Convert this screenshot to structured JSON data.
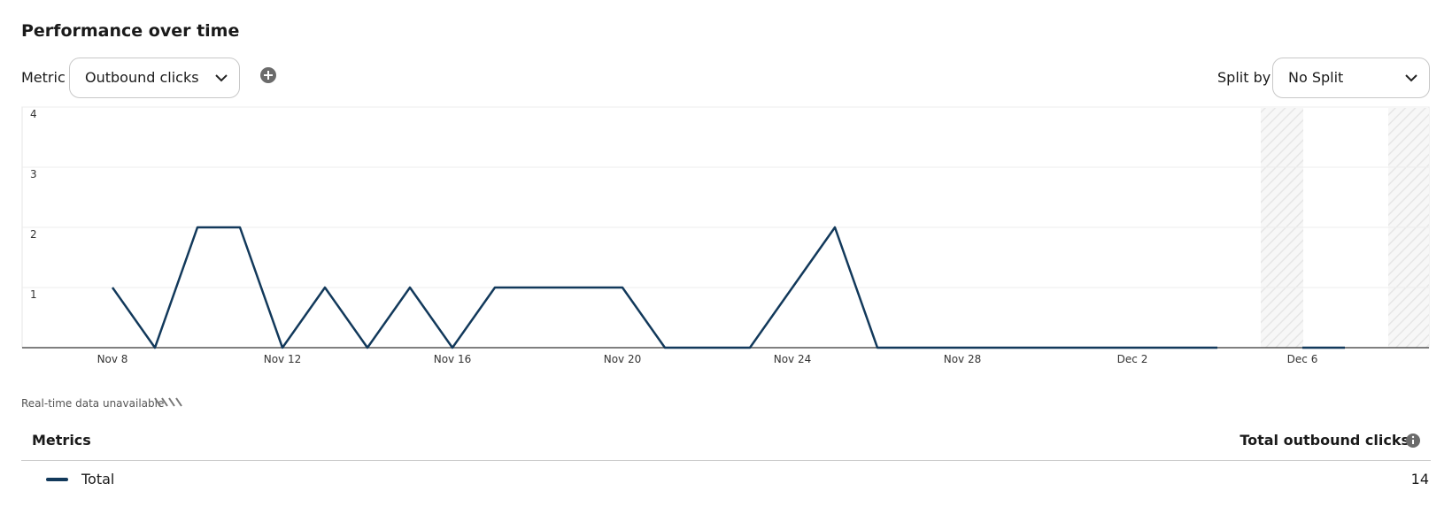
{
  "header": {
    "title": "Performance over time"
  },
  "controls": {
    "metric_label": "Metric",
    "metric_value": "Outbound clicks",
    "split_label": "Split by",
    "split_value": "No Split"
  },
  "chart_data": {
    "type": "line",
    "categories": [
      null,
      "Nov 8",
      null,
      null,
      null,
      "Nov 12",
      null,
      null,
      null,
      "Nov 16",
      null,
      null,
      null,
      "Nov 20",
      null,
      null,
      null,
      "Nov 24",
      null,
      null,
      null,
      "Nov 28",
      null,
      null,
      null,
      "Dec 2",
      null,
      null,
      null,
      "Dec 6",
      null,
      null
    ],
    "series": [
      {
        "name": "Total",
        "color": "#12395b",
        "values": [
          null,
          1,
          0,
          2,
          2,
          0,
          1,
          0,
          1,
          0,
          1,
          1,
          1,
          1,
          0,
          0,
          0,
          1,
          2,
          0,
          0,
          0,
          0,
          0,
          0,
          0,
          0,
          0,
          null,
          0,
          0,
          null
        ]
      }
    ],
    "ylim": [
      0,
      4
    ],
    "yticks": [
      1,
      2,
      3,
      4
    ],
    "grid": true,
    "note": "Real-time data unavailable"
  },
  "table": {
    "headers": [
      "Metrics",
      "Total outbound clicks"
    ],
    "total": 14
  }
}
